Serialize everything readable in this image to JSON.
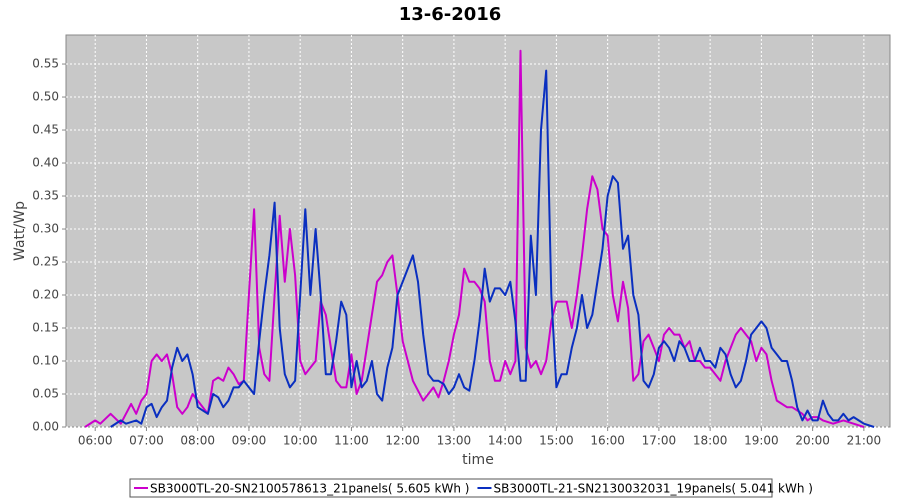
{
  "chart_data": {
    "type": "line",
    "title": "13-6-2016",
    "x_label": "time",
    "y_label": "Watt/Wp",
    "xlim": [
      5.43,
      21.51
    ],
    "ylim": [
      0,
      0.594
    ],
    "grid": true,
    "xticks": [
      {
        "value": 6,
        "label": "06:00"
      },
      {
        "value": 7,
        "label": "07:00"
      },
      {
        "value": 8,
        "label": "08:00"
      },
      {
        "value": 9,
        "label": "09:00"
      },
      {
        "value": 10,
        "label": "10:00"
      },
      {
        "value": 11,
        "label": "11:00"
      },
      {
        "value": 12,
        "label": "12:00"
      },
      {
        "value": 13,
        "label": "13:00"
      },
      {
        "value": 14,
        "label": "14:00"
      },
      {
        "value": 15,
        "label": "15:00"
      },
      {
        "value": 16,
        "label": "16:00"
      },
      {
        "value": 17,
        "label": "17:00"
      },
      {
        "value": 18,
        "label": "18:00"
      },
      {
        "value": 19,
        "label": "19:00"
      },
      {
        "value": 20,
        "label": "20:00"
      },
      {
        "value": 21,
        "label": "21:00"
      }
    ],
    "yticks": [
      {
        "value": 0,
        "label": "0.00"
      },
      0.05,
      {
        "value": 0.1,
        "label": "0.10"
      },
      0.15,
      {
        "value": 0.2,
        "label": "0.20"
      },
      0.25,
      {
        "value": 0.3,
        "label": "0.30"
      },
      0.35,
      {
        "value": 0.4,
        "label": "0.40"
      },
      0.45,
      {
        "value": 0.5,
        "label": "0.50"
      },
      0.55
    ],
    "series": [
      {
        "name": "SB3000TL-20-SN2100578613_21panels( 5.605 kWh )",
        "color": "#cc00cc",
        "x": [
          5.8,
          6.0,
          6.1,
          6.3,
          6.5,
          6.7,
          6.8,
          6.9,
          7.0,
          7.1,
          7.2,
          7.3,
          7.4,
          7.5,
          7.6,
          7.7,
          7.8,
          7.9,
          8.0,
          8.2,
          8.3,
          8.4,
          8.5,
          8.6,
          8.7,
          8.8,
          8.9,
          9.0,
          9.1,
          9.2,
          9.3,
          9.4,
          9.5,
          9.6,
          9.7,
          9.8,
          9.9,
          10.0,
          10.1,
          10.2,
          10.3,
          10.4,
          10.5,
          10.6,
          10.7,
          10.8,
          10.9,
          11.0,
          11.1,
          11.2,
          11.3,
          11.4,
          11.5,
          11.6,
          11.7,
          11.8,
          11.9,
          12.0,
          12.1,
          12.2,
          12.4,
          12.5,
          12.6,
          12.7,
          12.8,
          12.9,
          13.0,
          13.1,
          13.2,
          13.3,
          13.4,
          13.5,
          13.6,
          13.7,
          13.8,
          13.9,
          14.0,
          14.1,
          14.2,
          14.3,
          14.4,
          14.5,
          14.6,
          14.7,
          14.8,
          14.9,
          15.0,
          15.1,
          15.2,
          15.3,
          15.4,
          15.5,
          15.6,
          15.7,
          15.8,
          15.9,
          16.0,
          16.1,
          16.2,
          16.3,
          16.4,
          16.5,
          16.6,
          16.7,
          16.8,
          16.9,
          17.0,
          17.1,
          17.2,
          17.3,
          17.4,
          17.5,
          17.6,
          17.7,
          17.8,
          17.9,
          18.0,
          18.2,
          18.3,
          18.5,
          18.6,
          18.7,
          18.8,
          18.9,
          19.0,
          19.1,
          19.2,
          19.3,
          19.4,
          19.5,
          19.6,
          19.8,
          19.9,
          20.0,
          20.1,
          20.2,
          20.4,
          20.6,
          20.8,
          21.0
        ],
        "values": [
          0,
          0.01,
          0.005,
          0.02,
          0.005,
          0.035,
          0.02,
          0.04,
          0.05,
          0.1,
          0.11,
          0.1,
          0.11,
          0.08,
          0.03,
          0.02,
          0.03,
          0.05,
          0.04,
          0.02,
          0.07,
          0.075,
          0.07,
          0.09,
          0.08,
          0.065,
          0.07,
          0.2,
          0.33,
          0.12,
          0.08,
          0.07,
          0.2,
          0.32,
          0.22,
          0.3,
          0.23,
          0.1,
          0.08,
          0.09,
          0.1,
          0.19,
          0.17,
          0.12,
          0.07,
          0.06,
          0.06,
          0.11,
          0.05,
          0.07,
          0.12,
          0.17,
          0.22,
          0.23,
          0.25,
          0.26,
          0.2,
          0.13,
          0.1,
          0.07,
          0.04,
          0.05,
          0.06,
          0.045,
          0.07,
          0.1,
          0.14,
          0.17,
          0.24,
          0.22,
          0.22,
          0.21,
          0.19,
          0.1,
          0.07,
          0.07,
          0.1,
          0.08,
          0.1,
          0.57,
          0.12,
          0.09,
          0.1,
          0.08,
          0.1,
          0.16,
          0.19,
          0.19,
          0.19,
          0.15,
          0.2,
          0.26,
          0.33,
          0.38,
          0.36,
          0.3,
          0.29,
          0.2,
          0.16,
          0.22,
          0.18,
          0.07,
          0.08,
          0.13,
          0.14,
          0.12,
          0.1,
          0.14,
          0.15,
          0.14,
          0.14,
          0.12,
          0.13,
          0.1,
          0.1,
          0.09,
          0.09,
          0.07,
          0.1,
          0.14,
          0.15,
          0.14,
          0.13,
          0.1,
          0.12,
          0.11,
          0.07,
          0.04,
          0.035,
          0.03,
          0.03,
          0.02,
          0.01,
          0.015,
          0.015,
          0.01,
          0.005,
          0.01,
          0.005,
          0
        ]
      },
      {
        "name": "SB3000TL-21-SN2130032031_19panels( 5.041 kWh )",
        "color": "#0a2fc0",
        "x": [
          6.3,
          6.5,
          6.6,
          6.8,
          6.9,
          7.0,
          7.1,
          7.2,
          7.3,
          7.4,
          7.5,
          7.6,
          7.7,
          7.8,
          7.9,
          8.0,
          8.2,
          8.3,
          8.4,
          8.5,
          8.6,
          8.7,
          8.8,
          8.9,
          9.0,
          9.1,
          9.2,
          9.3,
          9.4,
          9.5,
          9.6,
          9.7,
          9.8,
          9.9,
          10.0,
          10.1,
          10.2,
          10.3,
          10.4,
          10.5,
          10.6,
          10.7,
          10.8,
          10.9,
          11.0,
          11.1,
          11.2,
          11.3,
          11.4,
          11.5,
          11.6,
          11.7,
          11.8,
          11.9,
          12.0,
          12.1,
          12.2,
          12.3,
          12.4,
          12.5,
          12.6,
          12.7,
          12.8,
          12.9,
          13.0,
          13.1,
          13.2,
          13.3,
          13.4,
          13.5,
          13.6,
          13.7,
          13.8,
          13.9,
          14.0,
          14.1,
          14.2,
          14.3,
          14.4,
          14.5,
          14.6,
          14.7,
          14.8,
          14.9,
          15.0,
          15.1,
          15.2,
          15.3,
          15.4,
          15.5,
          15.6,
          15.7,
          15.8,
          15.9,
          16.0,
          16.1,
          16.2,
          16.3,
          16.4,
          16.5,
          16.6,
          16.7,
          16.8,
          16.9,
          17.0,
          17.1,
          17.2,
          17.3,
          17.4,
          17.5,
          17.6,
          17.7,
          17.8,
          17.9,
          18.0,
          18.1,
          18.2,
          18.3,
          18.4,
          18.5,
          18.6,
          18.7,
          18.8,
          18.9,
          19.0,
          19.1,
          19.2,
          19.3,
          19.4,
          19.5,
          19.6,
          19.7,
          19.8,
          19.9,
          20.0,
          20.1,
          20.2,
          20.3,
          20.4,
          20.5,
          20.6,
          20.7,
          20.8,
          20.9,
          21.0,
          21.2
        ],
        "values": [
          0,
          0.01,
          0.005,
          0.01,
          0.005,
          0.03,
          0.035,
          0.015,
          0.03,
          0.04,
          0.09,
          0.12,
          0.1,
          0.11,
          0.08,
          0.03,
          0.02,
          0.05,
          0.045,
          0.03,
          0.04,
          0.06,
          0.06,
          0.07,
          0.06,
          0.05,
          0.13,
          0.2,
          0.26,
          0.34,
          0.15,
          0.08,
          0.06,
          0.07,
          0.2,
          0.33,
          0.2,
          0.3,
          0.2,
          0.08,
          0.08,
          0.13,
          0.19,
          0.17,
          0.06,
          0.1,
          0.06,
          0.07,
          0.1,
          0.05,
          0.04,
          0.09,
          0.12,
          0.2,
          0.22,
          0.24,
          0.26,
          0.22,
          0.14,
          0.08,
          0.07,
          0.07,
          0.065,
          0.05,
          0.06,
          0.08,
          0.06,
          0.055,
          0.1,
          0.16,
          0.24,
          0.19,
          0.21,
          0.21,
          0.2,
          0.22,
          0.16,
          0.07,
          0.07,
          0.29,
          0.2,
          0.45,
          0.54,
          0.2,
          0.06,
          0.08,
          0.08,
          0.12,
          0.15,
          0.2,
          0.15,
          0.17,
          0.22,
          0.27,
          0.35,
          0.38,
          0.37,
          0.27,
          0.29,
          0.2,
          0.17,
          0.07,
          0.06,
          0.08,
          0.12,
          0.13,
          0.12,
          0.1,
          0.13,
          0.12,
          0.1,
          0.1,
          0.12,
          0.1,
          0.1,
          0.09,
          0.12,
          0.11,
          0.08,
          0.06,
          0.07,
          0.1,
          0.14,
          0.15,
          0.16,
          0.15,
          0.12,
          0.11,
          0.1,
          0.1,
          0.07,
          0.03,
          0.01,
          0.025,
          0.01,
          0.01,
          0.04,
          0.02,
          0.01,
          0.01,
          0.02,
          0.01,
          0.015,
          0.01,
          0.005,
          0
        ]
      }
    ]
  }
}
